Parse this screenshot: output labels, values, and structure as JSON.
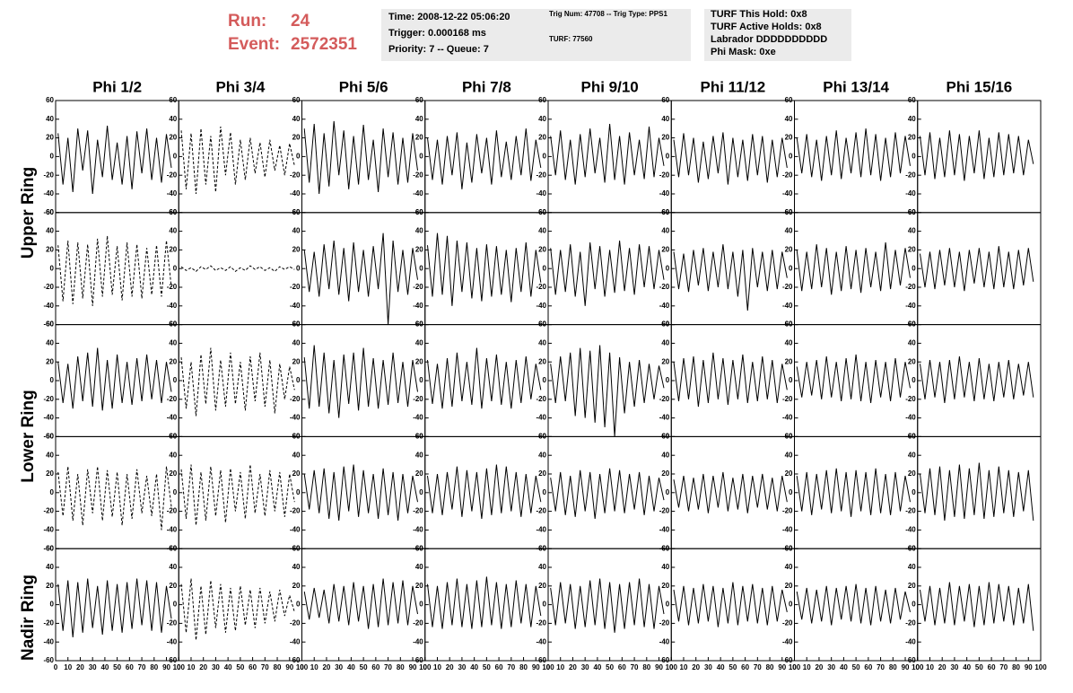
{
  "header": {
    "run_label": "Run:",
    "run": "24",
    "event_label": "Event:",
    "event": "2572351"
  },
  "info_boxes": [
    {
      "lines": [
        "Time: 2008-12-22 05:06:20",
        "Trigger: 0.000168 ms",
        "Priority: 7 -- Queue: 7"
      ]
    },
    {
      "lines": [
        "Trig Num: 47708 -- Trig Type: PPS1",
        "TURF: 77560"
      ]
    },
    {
      "lines": [
        "TURF This Hold: 0x8",
        "TURF Active Holds: 0x8",
        "Labrador DDDDDDDDDD",
        "Phi Mask: 0xe"
      ]
    }
  ],
  "chart_data": {
    "type": "line",
    "column_titles": [
      "Phi 1/2",
      "Phi 3/4",
      "Phi 5/6",
      "Phi 7/8",
      "Phi 9/10",
      "Phi 11/12",
      "Phi 13/14",
      "Phi 15/16"
    ],
    "ring_labels": [
      "Upper Ring",
      "Lower Ring",
      "Nadir Ring"
    ],
    "xlim": [
      0,
      100
    ],
    "ylim": [
      -60,
      60
    ],
    "xticks": [
      0,
      10,
      20,
      30,
      40,
      50,
      60,
      70,
      80,
      90,
      100
    ],
    "yticks": [
      -60,
      -40,
      -20,
      0,
      20,
      40,
      60
    ],
    "color": "#000000",
    "x": [
      2,
      6,
      10,
      14,
      18,
      22,
      26,
      30,
      34,
      38,
      42,
      46,
      50,
      54,
      58,
      62,
      66,
      70,
      74,
      78,
      82,
      86,
      90,
      94
    ],
    "series": [
      {
        "values": [
          25,
          -30,
          20,
          -38,
          30,
          -15,
          28,
          -40,
          18,
          -22,
          33,
          -25,
          15,
          -30,
          22,
          -35,
          27,
          -18,
          30,
          -25,
          20,
          -28,
          24,
          -12
        ]
      },
      {
        "dashed": true,
        "values": [
          28,
          -35,
          25,
          -40,
          30,
          -30,
          22,
          -38,
          32,
          -20,
          26,
          -30,
          18,
          -25,
          20,
          -18,
          15,
          -22,
          18,
          -15,
          12,
          -20,
          14,
          -10
        ]
      },
      {
        "values": [
          30,
          -28,
          35,
          -40,
          25,
          -32,
          38,
          -20,
          28,
          -35,
          22,
          -30,
          34,
          -25,
          18,
          -38,
          30,
          -22,
          26,
          -30,
          20,
          -28,
          25,
          -15
        ]
      },
      {
        "values": [
          20,
          -25,
          18,
          -30,
          22,
          -20,
          26,
          -35,
          15,
          -28,
          24,
          -18,
          20,
          -30,
          28,
          -22,
          16,
          -25,
          22,
          -20,
          30,
          -26,
          18,
          -12
        ]
      },
      {
        "values": [
          22,
          -20,
          28,
          -25,
          18,
          -30,
          24,
          -22,
          30,
          -18,
          20,
          -28,
          35,
          -25,
          22,
          -30,
          26,
          -20,
          18,
          -24,
          32,
          -22,
          20,
          -10
        ]
      },
      {
        "values": [
          18,
          -22,
          25,
          -20,
          20,
          -28,
          16,
          -24,
          22,
          -18,
          26,
          -30,
          20,
          -22,
          18,
          -26,
          24,
          -20,
          22,
          -28,
          18,
          -22,
          20,
          -12
        ]
      },
      {
        "values": [
          20,
          -18,
          24,
          -22,
          18,
          -26,
          22,
          -20,
          28,
          -24,
          20,
          -18,
          26,
          -22,
          30,
          -20,
          24,
          -26,
          20,
          -22,
          26,
          -18,
          22,
          -10
        ]
      },
      {
        "values": [
          22,
          -20,
          26,
          -24,
          20,
          -22,
          28,
          -20,
          24,
          -26,
          22,
          -18,
          28,
          -24,
          20,
          -22,
          26,
          -20,
          24,
          -18,
          22,
          -20,
          18,
          -8
        ]
      },
      {
        "dashed": true,
        "values": [
          25,
          -35,
          30,
          -38,
          28,
          -32,
          26,
          -40,
          32,
          -30,
          35,
          -28,
          24,
          -34,
          28,
          -30,
          26,
          -32,
          22,
          -28,
          25,
          -30,
          30,
          -20
        ]
      },
      {
        "dashed": true,
        "values": [
          2,
          -2,
          1,
          -3,
          2,
          -1,
          3,
          -2,
          1,
          -2,
          2,
          -3,
          1,
          -2,
          3,
          -1,
          2,
          -2,
          1,
          -3,
          2,
          -1,
          2,
          -1
        ]
      },
      {
        "values": [
          20,
          -25,
          18,
          -30,
          26,
          -22,
          30,
          -28,
          22,
          -35,
          28,
          -25,
          20,
          -30,
          24,
          -22,
          38,
          -60,
          30,
          -25,
          20,
          -28,
          22,
          -12
        ]
      },
      {
        "values": [
          25,
          -30,
          38,
          -28,
          35,
          -40,
          30,
          -25,
          28,
          -32,
          22,
          -35,
          26,
          -30,
          24,
          -28,
          20,
          -36,
          22,
          -25,
          28,
          -30,
          20,
          -15
        ]
      },
      {
        "values": [
          22,
          -28,
          20,
          -25,
          26,
          -30,
          18,
          -40,
          28,
          -22,
          24,
          -30,
          20,
          -26,
          30,
          -24,
          22,
          -28,
          26,
          -20,
          24,
          -22,
          20,
          -12
        ]
      },
      {
        "values": [
          18,
          -22,
          16,
          -25,
          20,
          -18,
          22,
          -24,
          18,
          -20,
          26,
          -22,
          18,
          -30,
          20,
          -45,
          22,
          -20,
          18,
          -24,
          20,
          -22,
          18,
          -10
        ]
      },
      {
        "values": [
          20,
          -24,
          18,
          -22,
          26,
          -20,
          22,
          -28,
          18,
          -24,
          24,
          -22,
          20,
          -26,
          22,
          -20,
          18,
          -24,
          28,
          -22,
          20,
          -18,
          22,
          -10
        ]
      },
      {
        "values": [
          16,
          -20,
          18,
          -22,
          20,
          -18,
          22,
          -20,
          18,
          -24,
          20,
          -16,
          22,
          -20,
          18,
          -22,
          24,
          -20,
          18,
          -22,
          20,
          -18,
          22,
          -14
        ]
      },
      {
        "values": [
          20,
          -24,
          18,
          -30,
          26,
          -22,
          30,
          -28,
          35,
          -32,
          22,
          -30,
          28,
          -24,
          20,
          -26,
          24,
          -22,
          28,
          -20,
          22,
          -24,
          20,
          -12
        ]
      },
      {
        "dashed": true,
        "values": [
          25,
          -30,
          20,
          -38,
          28,
          -25,
          35,
          -32,
          22,
          -28,
          30,
          -25,
          20,
          -32,
          26,
          -22,
          30,
          -28,
          22,
          -35,
          18,
          -20,
          15,
          -10
        ]
      },
      {
        "values": [
          25,
          -30,
          38,
          -28,
          30,
          -35,
          22,
          -40,
          28,
          -25,
          30,
          -32,
          35,
          -28,
          24,
          -30,
          22,
          -26,
          30,
          -24,
          20,
          -28,
          22,
          -12
        ]
      },
      {
        "values": [
          22,
          -25,
          18,
          -30,
          24,
          -28,
          30,
          -22,
          20,
          -26,
          35,
          -30,
          24,
          -22,
          28,
          -26,
          20,
          -30,
          22,
          -24,
          26,
          -20,
          18,
          -10
        ]
      },
      {
        "values": [
          18,
          -24,
          26,
          -22,
          30,
          -38,
          35,
          -40,
          32,
          -45,
          38,
          -50,
          30,
          -60,
          25,
          -35,
          20,
          -28,
          22,
          -24,
          18,
          -20,
          16,
          -8
        ]
      },
      {
        "values": [
          20,
          -22,
          24,
          -20,
          26,
          -28,
          22,
          -24,
          30,
          -20,
          24,
          -26,
          22,
          -20,
          28,
          -24,
          20,
          -22,
          26,
          -20,
          22,
          -24,
          18,
          -10
        ]
      },
      {
        "values": [
          15,
          -18,
          20,
          -16,
          22,
          -20,
          26,
          -18,
          20,
          -22,
          24,
          -20,
          28,
          -22,
          20,
          -24,
          22,
          -18,
          20,
          -22,
          24,
          -18,
          20,
          -8
        ]
      },
      {
        "values": [
          18,
          -20,
          22,
          -18,
          20,
          -24,
          22,
          -20,
          26,
          -18,
          20,
          -22,
          24,
          -20,
          18,
          -22,
          20,
          -18,
          22,
          -20,
          18,
          -16,
          20,
          -18
        ]
      },
      {
        "dashed": true,
        "values": [
          22,
          -25,
          28,
          -30,
          20,
          -35,
          25,
          -22,
          28,
          -30,
          24,
          -26,
          22,
          -35,
          20,
          -28,
          25,
          -22,
          18,
          -25,
          20,
          -40,
          28,
          -15
        ]
      },
      {
        "dashed": true,
        "values": [
          25,
          -28,
          30,
          -35,
          22,
          -30,
          28,
          -25,
          24,
          -32,
          26,
          -20,
          22,
          -28,
          30,
          -22,
          20,
          -25,
          24,
          -20,
          22,
          -26,
          20,
          -10
        ]
      },
      {
        "values": [
          20,
          -18,
          24,
          -22,
          26,
          -28,
          22,
          -30,
          28,
          -20,
          30,
          -26,
          24,
          -22,
          20,
          -28,
          26,
          -24,
          22,
          -30,
          20,
          -22,
          18,
          -10
        ]
      },
      {
        "values": [
          18,
          -22,
          20,
          -24,
          22,
          -18,
          28,
          -26,
          24,
          -20,
          22,
          -28,
          26,
          -24,
          30,
          -22,
          28,
          -20,
          22,
          -26,
          20,
          -22,
          18,
          -10
        ]
      },
      {
        "values": [
          16,
          -20,
          22,
          -24,
          18,
          -26,
          24,
          -20,
          22,
          -28,
          20,
          -22,
          26,
          -20,
          24,
          -22,
          20,
          -18,
          22,
          -24,
          18,
          -20,
          16,
          -8
        ]
      },
      {
        "values": [
          14,
          -16,
          18,
          -20,
          16,
          -18,
          20,
          -22,
          18,
          -16,
          22,
          -20,
          16,
          -18,
          20,
          -22,
          18,
          -16,
          20,
          -18,
          16,
          -20,
          18,
          -10
        ]
      },
      {
        "values": [
          18,
          -20,
          22,
          -24,
          20,
          -18,
          24,
          -22,
          26,
          -20,
          22,
          -26,
          24,
          -20,
          22,
          -24,
          26,
          -22,
          20,
          -24,
          22,
          -20,
          18,
          -10
        ]
      },
      {
        "values": [
          20,
          -22,
          26,
          -24,
          28,
          -30,
          24,
          -26,
          30,
          -28,
          26,
          -24,
          32,
          -28,
          24,
          -26,
          28,
          -22,
          24,
          -26,
          22,
          -20,
          24,
          -30
        ]
      },
      {
        "values": [
          22,
          -28,
          26,
          -35,
          24,
          -30,
          28,
          -25,
          20,
          -32,
          26,
          -28,
          22,
          -30,
          24,
          -26,
          28,
          -22,
          26,
          -28,
          24,
          -30,
          20,
          -15
        ]
      },
      {
        "dashed": true,
        "values": [
          22,
          -30,
          28,
          -38,
          20,
          -32,
          26,
          -25,
          22,
          -30,
          18,
          -28,
          20,
          -22,
          16,
          -25,
          18,
          -20,
          14,
          -18,
          16,
          -12,
          10,
          -8
        ]
      },
      {
        "values": [
          14,
          -16,
          18,
          -14,
          16,
          -20,
          22,
          -18,
          20,
          -22,
          24,
          -18,
          20,
          -26,
          22,
          -24,
          28,
          -22,
          24,
          -20,
          26,
          -22,
          20,
          -10
        ]
      },
      {
        "values": [
          22,
          -24,
          20,
          -26,
          24,
          -22,
          28,
          -24,
          22,
          -26,
          26,
          -24,
          30,
          -22,
          24,
          -26,
          22,
          -24,
          26,
          -20,
          22,
          -24,
          20,
          -12
        ]
      },
      {
        "values": [
          18,
          -22,
          24,
          -20,
          22,
          -26,
          20,
          -24,
          26,
          -22,
          28,
          -26,
          24,
          -30,
          22,
          -26,
          24,
          -22,
          28,
          -24,
          22,
          -26,
          20,
          -10
        ]
      },
      {
        "values": [
          16,
          -18,
          20,
          -22,
          18,
          -20,
          22,
          -18,
          20,
          -24,
          18,
          -20,
          24,
          -22,
          20,
          -18,
          22,
          -20,
          18,
          -22,
          20,
          -18,
          16,
          -8
        ]
      },
      {
        "values": [
          14,
          -16,
          18,
          -20,
          16,
          -18,
          20,
          -22,
          18,
          -16,
          20,
          -18,
          22,
          -20,
          18,
          -22,
          20,
          -18,
          16,
          -20,
          18,
          -16,
          14,
          -8
        ]
      },
      {
        "values": [
          16,
          -18,
          20,
          -22,
          18,
          -20,
          24,
          -22,
          20,
          -18,
          22,
          -24,
          20,
          -22,
          24,
          -20,
          22,
          -18,
          20,
          -22,
          18,
          -20,
          22,
          -28
        ]
      }
    ]
  }
}
